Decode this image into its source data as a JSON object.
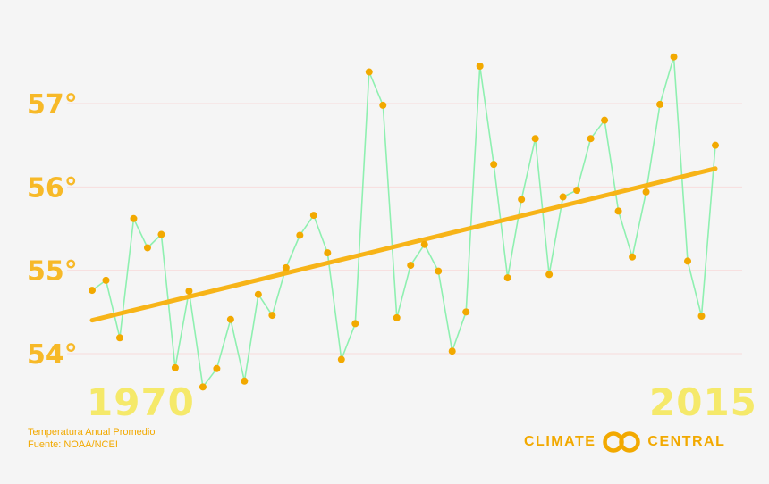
{
  "chart_data": {
    "type": "line",
    "title": "",
    "xlabel": "",
    "ylabel": "",
    "x": [
      1970,
      1971,
      1972,
      1973,
      1974,
      1975,
      1976,
      1977,
      1978,
      1979,
      1980,
      1981,
      1982,
      1983,
      1984,
      1985,
      1986,
      1987,
      1988,
      1989,
      1990,
      1991,
      1992,
      1993,
      1994,
      1995,
      1996,
      1997,
      1998,
      1999,
      2000,
      2001,
      2002,
      2003,
      2004,
      2005,
      2006,
      2007,
      2008,
      2009,
      2010,
      2011,
      2012,
      2013,
      2014,
      2015
    ],
    "series": [
      {
        "name": "",
        "values": [
          54.76,
          54.88,
          54.19,
          55.62,
          55.27,
          55.43,
          53.83,
          54.75,
          53.6,
          53.82,
          54.41,
          53.67,
          54.71,
          54.46,
          55.03,
          55.42,
          55.66,
          55.21,
          53.93,
          54.36,
          57.38,
          56.98,
          54.43,
          55.06,
          55.31,
          54.99,
          54.03,
          54.5,
          57.45,
          56.27,
          54.91,
          55.85,
          56.58,
          54.95,
          55.88,
          55.96,
          56.58,
          56.8,
          55.71,
          55.16,
          55.94,
          56.99,
          57.56,
          55.11,
          54.45,
          56.5
        ]
      }
    ],
    "trend": {
      "start": [
        1970,
        54.4
      ],
      "end": [
        2015,
        56.22
      ]
    },
    "yticks": [
      54,
      55,
      56,
      57
    ],
    "ytick_labels": [
      "54°",
      "55°",
      "56°",
      "57°"
    ],
    "ylim": [
      53.4,
      57.9
    ],
    "xlim": [
      1970,
      2015
    ],
    "grid": true,
    "legend": "none",
    "colors": {
      "line": "#8ef0b0",
      "marker": "#f2a900",
      "trend": "#f7b418",
      "grid": "#f7dcdc"
    }
  },
  "labels": {
    "year_start": "1970",
    "year_end": "2015",
    "caption_line1": "Temperatura Anual Promedio",
    "caption_line2": "Fuente: NOAA/NCEI"
  },
  "logo": {
    "text_left": "CLIMATE",
    "text_right": "CENTRAL",
    "icon": "linked-rings-icon",
    "color": "#f2a900"
  }
}
